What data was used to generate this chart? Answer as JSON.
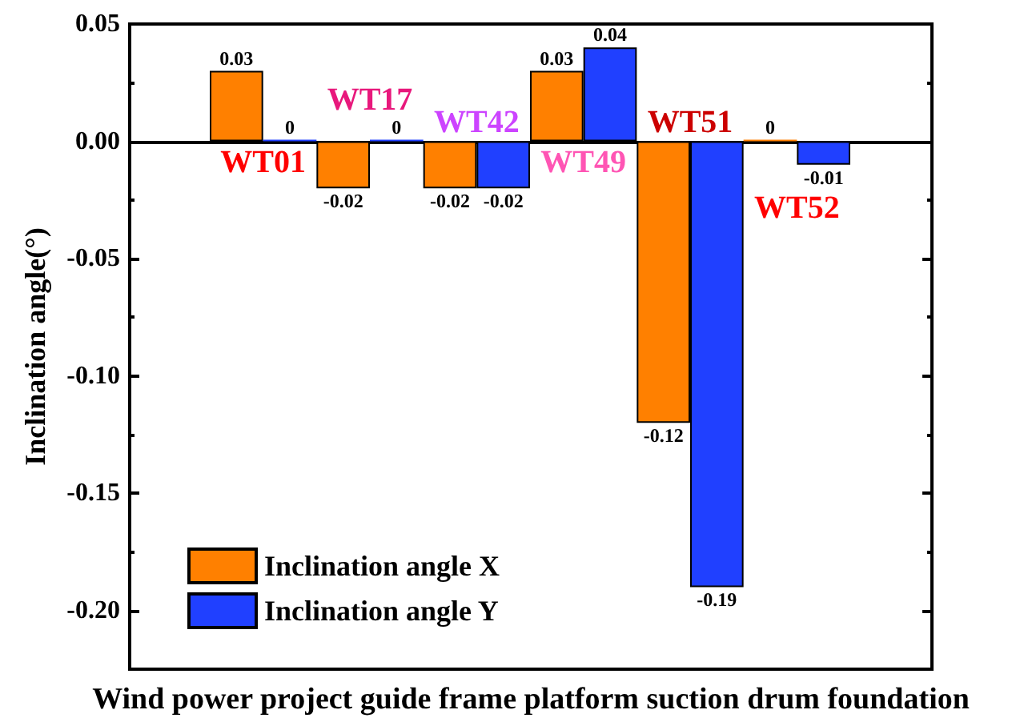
{
  "chart_data": {
    "type": "bar",
    "categories": [
      "WT01",
      "WT17",
      "WT42",
      "WT49",
      "WT51",
      "WT52"
    ],
    "series": [
      {
        "name": "Inclination angle X",
        "color": "#ff8000",
        "values": [
          0.03,
          -0.02,
          -0.02,
          0.03,
          -0.12,
          0
        ]
      },
      {
        "name": "Inclination angle Y",
        "color": "#2040ff",
        "values": [
          0,
          0,
          -0.02,
          0.04,
          -0.19,
          -0.01
        ]
      }
    ],
    "xlabel": "Wind power project guide frame platform suction drum foundation",
    "ylabel": "Inclination angle(°)",
    "ylim": [
      -0.225,
      0.05
    ],
    "yticks": [
      0.05,
      {
        "value": 0.025,
        "label": null
      },
      {
        "value": 0,
        "label": "0.00"
      },
      {
        "value": -0.025,
        "label": null
      },
      -0.05,
      {
        "value": -0.075,
        "label": null
      },
      {
        "value": -0.1,
        "label": "-0.10"
      },
      {
        "value": -0.125,
        "label": null
      },
      -0.15,
      {
        "value": -0.175,
        "label": null
      },
      {
        "value": -0.2,
        "label": "-0.20"
      }
    ],
    "data_labels": true,
    "legend": "bottom left"
  }
}
